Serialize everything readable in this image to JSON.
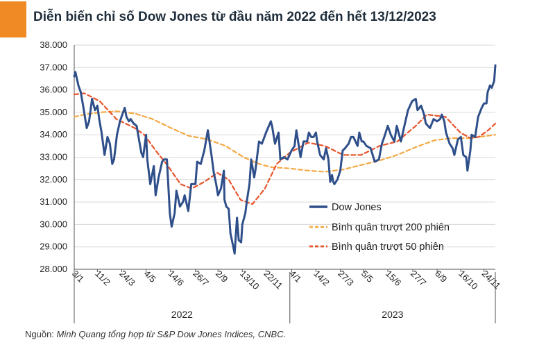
{
  "title": "Diễn biến chỉ số Dow Jones từ đầu năm 2022 đến hết 13/12/2023",
  "source_label": "Nguồn:",
  "source_text": "Minh Quang tổng hợp từ S&P Dow Jones Indices, CNBC.",
  "colors": {
    "accent": "#f08a24",
    "dow": "#2f4f8a",
    "ma200": "#f5a843",
    "ma50": "#e8532a"
  },
  "chart_data": {
    "type": "line",
    "ylim": [
      28000,
      38000
    ],
    "yticks": [
      28000,
      29000,
      30000,
      31000,
      32000,
      33000,
      34000,
      35000,
      36000,
      37000,
      38000
    ],
    "ytick_labels": [
      "28.000",
      "29.000",
      "30.000",
      "31.000",
      "32.000",
      "33.000",
      "34.000",
      "35.000",
      "36.000",
      "37.000",
      "38.000"
    ],
    "xlim": [
      "2022-01-03",
      "2023-12-13"
    ],
    "x_ticks": [
      {
        "date": "2022-01-03",
        "label": "3/1"
      },
      {
        "date": "2022-02-11",
        "label": "11/2"
      },
      {
        "date": "2022-03-24",
        "label": "24/3"
      },
      {
        "date": "2022-05-04",
        "label": "4/5"
      },
      {
        "date": "2022-06-14",
        "label": "14/6"
      },
      {
        "date": "2022-07-26",
        "label": "26/7"
      },
      {
        "date": "2022-09-02",
        "label": "2/9"
      },
      {
        "date": "2022-10-13",
        "label": "13/10"
      },
      {
        "date": "2022-11-22",
        "label": "22/11"
      },
      {
        "date": "2023-01-04",
        "label": "4/1"
      },
      {
        "date": "2023-02-14",
        "label": "14/2"
      },
      {
        "date": "2023-03-27",
        "label": "27/3"
      },
      {
        "date": "2023-05-05",
        "label": "5/5"
      },
      {
        "date": "2023-06-15",
        "label": "15/6"
      },
      {
        "date": "2023-07-27",
        "label": "27/7"
      },
      {
        "date": "2023-09-06",
        "label": "6/9"
      },
      {
        "date": "2023-10-16",
        "label": "16/10"
      },
      {
        "date": "2023-11-24",
        "label": "24/11"
      }
    ],
    "year_groups": [
      {
        "label": "2022",
        "start": "2022-01-03",
        "end": "2022-12-31"
      },
      {
        "label": "2023",
        "start": "2023-01-01",
        "end": "2023-12-13"
      }
    ],
    "legend_position": "bottom-right",
    "series": [
      {
        "name": "Dow Jones",
        "style": "solid",
        "points": [
          [
            "2022-01-03",
            36600
          ],
          [
            "2022-01-05",
            36800
          ],
          [
            "2022-01-10",
            36200
          ],
          [
            "2022-01-14",
            35900
          ],
          [
            "2022-01-18",
            35300
          ],
          [
            "2022-01-24",
            34300
          ],
          [
            "2022-01-28",
            34600
          ],
          [
            "2022-02-02",
            35600
          ],
          [
            "2022-02-07",
            35100
          ],
          [
            "2022-02-11",
            35300
          ],
          [
            "2022-02-14",
            34700
          ],
          [
            "2022-02-18",
            34100
          ],
          [
            "2022-02-23",
            33100
          ],
          [
            "2022-02-28",
            33900
          ],
          [
            "2022-03-04",
            33600
          ],
          [
            "2022-03-08",
            32700
          ],
          [
            "2022-03-11",
            32900
          ],
          [
            "2022-03-16",
            34000
          ],
          [
            "2022-03-21",
            34600
          ],
          [
            "2022-03-29",
            35200
          ],
          [
            "2022-04-01",
            34800
          ],
          [
            "2022-04-05",
            34600
          ],
          [
            "2022-04-08",
            34700
          ],
          [
            "2022-04-13",
            34500
          ],
          [
            "2022-04-18",
            34400
          ],
          [
            "2022-04-22",
            33800
          ],
          [
            "2022-04-26",
            33200
          ],
          [
            "2022-04-29",
            33000
          ],
          [
            "2022-05-04",
            34000
          ],
          [
            "2022-05-06",
            32900
          ],
          [
            "2022-05-11",
            31800
          ],
          [
            "2022-05-17",
            32600
          ],
          [
            "2022-05-20",
            31300
          ],
          [
            "2022-05-25",
            32100
          ],
          [
            "2022-05-31",
            32800
          ],
          [
            "2022-06-03",
            32900
          ],
          [
            "2022-06-08",
            32900
          ],
          [
            "2022-06-13",
            30500
          ],
          [
            "2022-06-16",
            29900
          ],
          [
            "2022-06-21",
            30500
          ],
          [
            "2022-06-24",
            31500
          ],
          [
            "2022-06-30",
            30800
          ],
          [
            "2022-07-05",
            31000
          ],
          [
            "2022-07-08",
            31300
          ],
          [
            "2022-07-14",
            30600
          ],
          [
            "2022-07-19",
            31800
          ],
          [
            "2022-07-26",
            31800
          ],
          [
            "2022-07-29",
            32800
          ],
          [
            "2022-08-04",
            32700
          ],
          [
            "2022-08-10",
            33300
          ],
          [
            "2022-08-16",
            34200
          ],
          [
            "2022-08-22",
            33100
          ],
          [
            "2022-08-26",
            32300
          ],
          [
            "2022-08-30",
            31800
          ],
          [
            "2022-09-02",
            31300
          ],
          [
            "2022-09-07",
            31600
          ],
          [
            "2022-09-12",
            32400
          ],
          [
            "2022-09-13",
            31100
          ],
          [
            "2022-09-16",
            30800
          ],
          [
            "2022-09-20",
            30700
          ],
          [
            "2022-09-23",
            29600
          ],
          [
            "2022-09-27",
            29100
          ],
          [
            "2022-09-30",
            28700
          ],
          [
            "2022-10-04",
            30300
          ],
          [
            "2022-10-07",
            29300
          ],
          [
            "2022-10-11",
            29200
          ],
          [
            "2022-10-13",
            30000
          ],
          [
            "2022-10-18",
            30500
          ],
          [
            "2022-10-21",
            31100
          ],
          [
            "2022-10-25",
            31800
          ],
          [
            "2022-10-28",
            32900
          ],
          [
            "2022-11-02",
            32100
          ],
          [
            "2022-11-04",
            32400
          ],
          [
            "2022-11-10",
            33700
          ],
          [
            "2022-11-15",
            33600
          ],
          [
            "2022-11-22",
            34100
          ],
          [
            "2022-11-30",
            34600
          ],
          [
            "2022-12-02",
            34400
          ],
          [
            "2022-12-07",
            33600
          ],
          [
            "2022-12-13",
            34100
          ],
          [
            "2022-12-16",
            32900
          ],
          [
            "2022-12-22",
            33000
          ],
          [
            "2022-12-28",
            32900
          ],
          [
            "2023-01-04",
            33300
          ],
          [
            "2023-01-09",
            33500
          ],
          [
            "2023-01-12",
            34200
          ],
          [
            "2023-01-19",
            33000
          ],
          [
            "2023-01-24",
            33700
          ],
          [
            "2023-01-30",
            33700
          ],
          [
            "2023-02-02",
            34100
          ],
          [
            "2023-02-06",
            33900
          ],
          [
            "2023-02-10",
            33900
          ],
          [
            "2023-02-14",
            34100
          ],
          [
            "2023-02-16",
            33700
          ],
          [
            "2023-02-21",
            33100
          ],
          [
            "2023-02-27",
            32900
          ],
          [
            "2023-03-03",
            33400
          ],
          [
            "2023-03-07",
            32900
          ],
          [
            "2023-03-10",
            31900
          ],
          [
            "2023-03-13",
            32200
          ],
          [
            "2023-03-15",
            31900
          ],
          [
            "2023-03-17",
            31800
          ],
          [
            "2023-03-22",
            32000
          ],
          [
            "2023-03-27",
            32400
          ],
          [
            "2023-03-31",
            33300
          ],
          [
            "2023-04-04",
            33400
          ],
          [
            "2023-04-10",
            33600
          ],
          [
            "2023-04-14",
            33900
          ],
          [
            "2023-04-18",
            33900
          ],
          [
            "2023-04-25",
            33500
          ],
          [
            "2023-04-28",
            34100
          ],
          [
            "2023-05-02",
            33700
          ],
          [
            "2023-05-05",
            33700
          ],
          [
            "2023-05-10",
            33500
          ],
          [
            "2023-05-17",
            33400
          ],
          [
            "2023-05-24",
            32800
          ],
          [
            "2023-05-31",
            32900
          ],
          [
            "2023-06-05",
            33600
          ],
          [
            "2023-06-09",
            33900
          ],
          [
            "2023-06-15",
            34400
          ],
          [
            "2023-06-20",
            34000
          ],
          [
            "2023-06-26",
            33700
          ],
          [
            "2023-06-30",
            34400
          ],
          [
            "2023-07-07",
            33700
          ],
          [
            "2023-07-12",
            34300
          ],
          [
            "2023-07-19",
            35100
          ],
          [
            "2023-07-26",
            35500
          ],
          [
            "2023-08-01",
            35600
          ],
          [
            "2023-08-04",
            35100
          ],
          [
            "2023-08-10",
            35300
          ],
          [
            "2023-08-15",
            34900
          ],
          [
            "2023-08-18",
            34500
          ],
          [
            "2023-08-25",
            34300
          ],
          [
            "2023-08-31",
            34700
          ],
          [
            "2023-09-06",
            34600
          ],
          [
            "2023-09-11",
            34700
          ],
          [
            "2023-09-14",
            34900
          ],
          [
            "2023-09-18",
            34600
          ],
          [
            "2023-09-21",
            34100
          ],
          [
            "2023-09-27",
            33600
          ],
          [
            "2023-10-02",
            33400
          ],
          [
            "2023-10-05",
            33100
          ],
          [
            "2023-10-11",
            33800
          ],
          [
            "2023-10-16",
            33900
          ],
          [
            "2023-10-20",
            33100
          ],
          [
            "2023-10-25",
            33000
          ],
          [
            "2023-10-27",
            32400
          ],
          [
            "2023-11-01",
            33300
          ],
          [
            "2023-11-03",
            34000
          ],
          [
            "2023-11-09",
            33900
          ],
          [
            "2023-11-14",
            34800
          ],
          [
            "2023-11-20",
            35200
          ],
          [
            "2023-11-24",
            35400
          ],
          [
            "2023-11-28",
            35400
          ],
          [
            "2023-11-30",
            35900
          ],
          [
            "2023-12-04",
            36200
          ],
          [
            "2023-12-07",
            36100
          ],
          [
            "2023-12-11",
            36400
          ],
          [
            "2023-12-13",
            37100
          ]
        ]
      },
      {
        "name": "Bình quân trượt 200 phiên",
        "style": "dashed",
        "points": [
          [
            "2022-01-03",
            34800
          ],
          [
            "2022-01-20",
            34900
          ],
          [
            "2022-02-15",
            35000
          ],
          [
            "2022-03-15",
            35050
          ],
          [
            "2022-04-15",
            34950
          ],
          [
            "2022-05-15",
            34700
          ],
          [
            "2022-06-15",
            34300
          ],
          [
            "2022-07-15",
            33950
          ],
          [
            "2022-08-15",
            33800
          ],
          [
            "2022-09-15",
            33500
          ],
          [
            "2022-10-15",
            33000
          ],
          [
            "2022-11-10",
            32700
          ],
          [
            "2022-12-01",
            32550
          ],
          [
            "2023-01-01",
            32500
          ],
          [
            "2023-02-01",
            32400
          ],
          [
            "2023-03-01",
            32350
          ],
          [
            "2023-04-01",
            32450
          ],
          [
            "2023-05-01",
            32650
          ],
          [
            "2023-06-01",
            32850
          ],
          [
            "2023-07-01",
            33100
          ],
          [
            "2023-08-01",
            33450
          ],
          [
            "2023-09-01",
            33750
          ],
          [
            "2023-10-01",
            33850
          ],
          [
            "2023-11-01",
            33850
          ],
          [
            "2023-12-13",
            34000
          ]
        ]
      },
      {
        "name": "Bình quân trượt 50 phiên",
        "style": "dashed",
        "points": [
          [
            "2022-01-03",
            35800
          ],
          [
            "2022-01-20",
            35850
          ],
          [
            "2022-02-15",
            35500
          ],
          [
            "2022-03-15",
            34700
          ],
          [
            "2022-04-15",
            34300
          ],
          [
            "2022-05-01",
            34000
          ],
          [
            "2022-05-20",
            33300
          ],
          [
            "2022-06-10",
            32600
          ],
          [
            "2022-07-01",
            31800
          ],
          [
            "2022-07-20",
            31600
          ],
          [
            "2022-08-10",
            31900
          ],
          [
            "2022-09-01",
            32300
          ],
          [
            "2022-09-20",
            32000
          ],
          [
            "2022-10-10",
            31100
          ],
          [
            "2022-10-30",
            30900
          ],
          [
            "2022-11-20",
            31600
          ],
          [
            "2022-12-10",
            32700
          ],
          [
            "2023-01-01",
            33200
          ],
          [
            "2023-02-01",
            33650
          ],
          [
            "2023-03-01",
            33500
          ],
          [
            "2023-04-01",
            33100
          ],
          [
            "2023-05-01",
            33100
          ],
          [
            "2023-06-01",
            33500
          ],
          [
            "2023-07-01",
            33700
          ],
          [
            "2023-08-01",
            34400
          ],
          [
            "2023-08-20",
            34900
          ],
          [
            "2023-09-20",
            34800
          ],
          [
            "2023-10-15",
            34100
          ],
          [
            "2023-11-01",
            33850
          ],
          [
            "2023-11-15",
            33900
          ],
          [
            "2023-12-01",
            34200
          ],
          [
            "2023-12-13",
            34500
          ]
        ]
      }
    ]
  }
}
